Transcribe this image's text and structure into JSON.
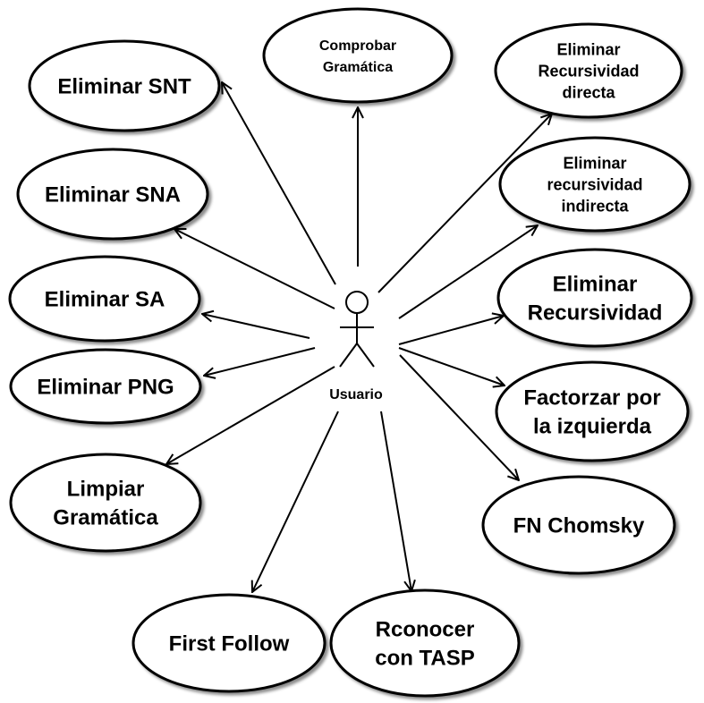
{
  "actor": {
    "label": "Usuario"
  },
  "use_cases": [
    {
      "id": "comprobar-gramatica",
      "lines": [
        "Comprobar",
        "Gramática"
      ]
    },
    {
      "id": "eliminar-snt",
      "lines": [
        "Eliminar SNT"
      ]
    },
    {
      "id": "eliminar-recursividad-directa",
      "lines": [
        "Eliminar",
        "Recursividad",
        "directa"
      ]
    },
    {
      "id": "eliminar-sna",
      "lines": [
        "Eliminar SNA"
      ]
    },
    {
      "id": "eliminar-recursividad-indirecta",
      "lines": [
        "Eliminar",
        "recursividad",
        "indirecta"
      ]
    },
    {
      "id": "eliminar-sa",
      "lines": [
        "Eliminar SA"
      ]
    },
    {
      "id": "eliminar-recursividad",
      "lines": [
        "Eliminar",
        "Recursividad"
      ]
    },
    {
      "id": "eliminar-png",
      "lines": [
        "Eliminar PNG"
      ]
    },
    {
      "id": "factorizar-izquierda",
      "lines": [
        "Factorzar por",
        "la izquierda"
      ]
    },
    {
      "id": "limpiar-gramatica",
      "lines": [
        "Limpiar",
        "Gramática"
      ]
    },
    {
      "id": "fn-chomsky",
      "lines": [
        "FN Chomsky"
      ]
    },
    {
      "id": "first-follow",
      "lines": [
        "First Follow"
      ]
    },
    {
      "id": "reconocer-tasp",
      "lines": [
        "Rconocer",
        "con TASP"
      ]
    }
  ]
}
